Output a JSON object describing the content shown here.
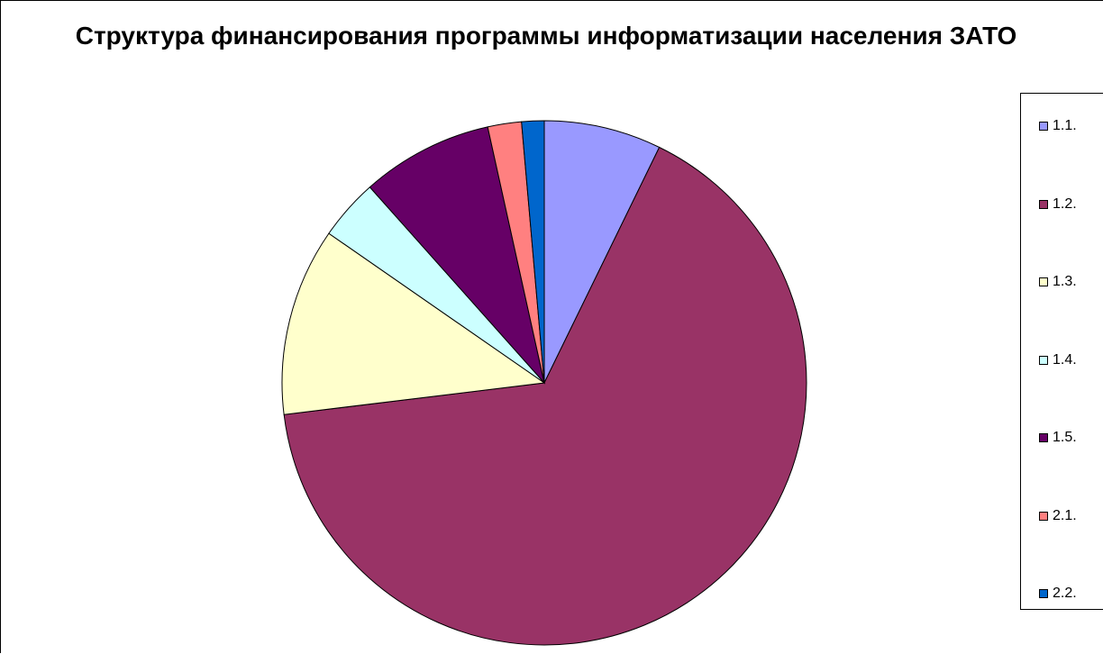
{
  "chart_data": {
    "type": "pie",
    "title": "Структура финансирования программы информатизации населения ЗАТО",
    "categories": [
      "1.1.",
      "1.2.",
      "1.3.",
      "1.4.",
      "1.5.",
      "2.1.",
      "2.2."
    ],
    "values": [
      7.3,
      66.5,
      11.7,
      3.8,
      8.2,
      2.1,
      1.4
    ],
    "unit": "%",
    "colors": [
      "#9999FF",
      "#993366",
      "#FFFFCC",
      "#CCFFFF",
      "#660066",
      "#FF8080",
      "#0066CC"
    ],
    "legend_position": "right"
  }
}
